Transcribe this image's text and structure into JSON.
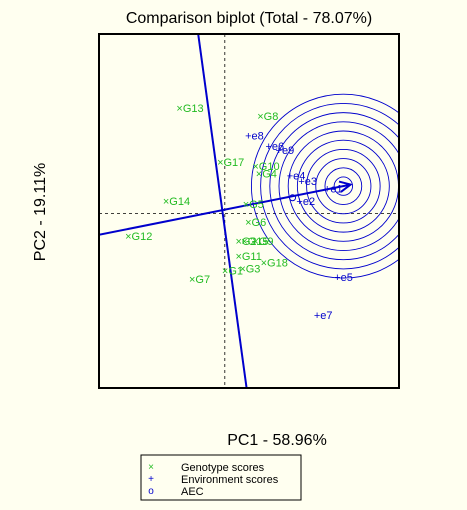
{
  "chart_data": {
    "type": "scatter",
    "title": "Comparison biplot (Total - 78.07%)",
    "xlabel": "PC1 - 58.96%",
    "ylabel": "PC2 - 19.11%",
    "xlim": [
      -2.6,
      3.6
    ],
    "ylim": [
      -3.3,
      3.4
    ],
    "grid": false,
    "legend_position": "bottom",
    "colors": {
      "genotype": "#22bb22",
      "environment": "#0000cc",
      "axis_line": "#0000cc",
      "dashed": "#000000",
      "background": "#fffff0"
    },
    "legend": [
      {
        "marker": "×",
        "label": "Genotype scores"
      },
      {
        "marker": "+",
        "label": "Environment scores"
      },
      {
        "marker": "o",
        "label": "AEC"
      }
    ],
    "genotypes": [
      {
        "label": "G13",
        "x": -1.0,
        "y": 2.0
      },
      {
        "label": "G8",
        "x": 0.67,
        "y": 1.85
      },
      {
        "label": "G17",
        "x": -0.16,
        "y": 0.98
      },
      {
        "label": "G10",
        "x": 0.57,
        "y": 0.9
      },
      {
        "label": "G4",
        "x": 0.64,
        "y": 0.76
      },
      {
        "label": "G14",
        "x": -1.28,
        "y": 0.24
      },
      {
        "label": "G12",
        "x": -2.06,
        "y": -0.42
      },
      {
        "label": "G5",
        "x": 0.37,
        "y": 0.18
      },
      {
        "label": "G6",
        "x": 0.42,
        "y": -0.16
      },
      {
        "label": "G2",
        "x": 0.22,
        "y": -0.52
      },
      {
        "label": "G15",
        "x": 0.34,
        "y": -0.52
      },
      {
        "label": "G9",
        "x": 0.57,
        "y": -0.52
      },
      {
        "label": "G11",
        "x": 0.22,
        "y": -0.8
      },
      {
        "label": "G3",
        "x": 0.3,
        "y": -1.04
      },
      {
        "label": "G18",
        "x": 0.74,
        "y": -0.92
      },
      {
        "label": "G1",
        "x": -0.06,
        "y": -1.08
      },
      {
        "label": "G7",
        "x": -0.74,
        "y": -1.24
      }
    ],
    "environments": [
      {
        "label": "e8",
        "x": 0.42,
        "y": 1.48
      },
      {
        "label": "e6",
        "x": 0.84,
        "y": 1.28
      },
      {
        "label": "e9",
        "x": 1.05,
        "y": 1.2
      },
      {
        "label": "e4",
        "x": 1.28,
        "y": 0.72
      },
      {
        "label": "e3",
        "x": 1.52,
        "y": 0.62
      },
      {
        "label": "e1",
        "x": 2.05,
        "y": 0.48
      },
      {
        "label": "e2",
        "x": 1.48,
        "y": 0.24
      },
      {
        "label": "e5",
        "x": 2.26,
        "y": -1.2
      },
      {
        "label": "e7",
        "x": 1.84,
        "y": -1.92
      }
    ],
    "aec_marker": {
      "x": 1.4,
      "y": 0.3
    },
    "ideal_center": {
      "x": 2.45,
      "y": 0.52
    },
    "circle_radii": [
      0.19,
      0.38,
      0.57,
      0.76,
      0.95,
      1.14,
      1.33,
      1.52,
      1.71,
      1.9
    ],
    "aec_abscissa": {
      "from": [
        -2.6,
        -0.4
      ],
      "to": [
        2.6,
        0.55
      ]
    },
    "aec_ordinate": {
      "from": [
        -0.55,
        3.4
      ],
      "to": [
        0.45,
        -3.3
      ]
    },
    "dashed_vertical_x": 0,
    "dashed_horizontal_y": 0
  }
}
